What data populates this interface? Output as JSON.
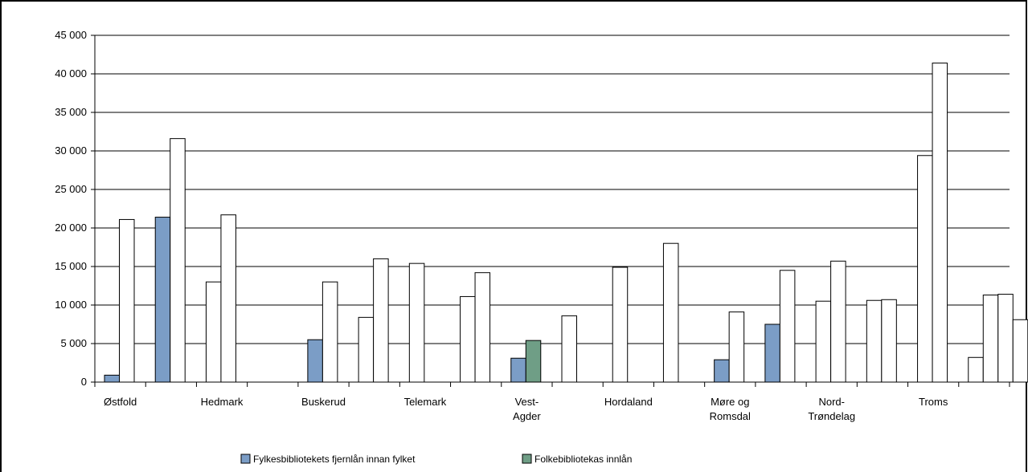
{
  "chart_data": {
    "type": "bar",
    "categories": [
      "Østfold",
      "",
      "Hedmark",
      "",
      "Buskerud",
      "",
      "Telemark",
      "",
      "Vest-Agder",
      "",
      "Hordaland",
      "",
      "Møre og Romsdal",
      "",
      "Nord-Trøndelag",
      "",
      "Troms",
      ""
    ],
    "category_labels": [
      [
        "Østfold"
      ],
      [],
      [
        "Hedmark"
      ],
      [],
      [
        "Buskerud"
      ],
      [],
      [
        "Telemark"
      ],
      [],
      [
        "Vest-",
        "Agder"
      ],
      [],
      [
        "Hordaland"
      ],
      [],
      [
        "Møre og",
        "Romsdal"
      ],
      [],
      [
        "Nord-",
        "Trøndelag"
      ],
      [],
      [
        "Troms"
      ],
      []
    ],
    "series": [
      {
        "name": "Fylkesbibliotekets fjernlån innan fylket",
        "color": "#7b9dc6",
        "values": [
          900,
          21400,
          0,
          0,
          5500,
          0,
          0,
          0,
          3100,
          0,
          0,
          0,
          2900,
          7500,
          0,
          0,
          0,
          0
        ]
      },
      {
        "name": "Folkebibliotekas innlån",
        "color": "#6f9e86",
        "values": [
          0,
          0,
          0,
          0,
          0,
          0,
          0,
          0,
          5400,
          0,
          0,
          0,
          0,
          0,
          0,
          0,
          0,
          0
        ]
      },
      {
        "name": "",
        "color": "#ffffff",
        "values": [
          0,
          0,
          13000,
          0,
          0,
          8400,
          15400,
          11100,
          0,
          0,
          14900,
          0,
          0,
          0,
          10500,
          10600,
          29400,
          3200
        ]
      },
      {
        "name": "",
        "color": "#ffffff",
        "values": [
          21100,
          31600,
          21700,
          0,
          13000,
          16000,
          0,
          14200,
          0,
          8600,
          0,
          18000,
          9100,
          14500,
          15700,
          10700,
          41400,
          0
        ]
      },
      {
        "name": "",
        "color": "#ffffff",
        "values": [
          0,
          0,
          0,
          0,
          0,
          0,
          0,
          0,
          0,
          0,
          0,
          0,
          0,
          0,
          0,
          0,
          0,
          11300
        ]
      },
      {
        "name": "",
        "color": "#ffffff",
        "values": [
          0,
          0,
          0,
          0,
          0,
          0,
          0,
          0,
          0,
          0,
          0,
          0,
          0,
          0,
          0,
          0,
          0,
          11400
        ]
      },
      {
        "name": "",
        "color": "#ffffff",
        "values": [
          0,
          0,
          0,
          0,
          0,
          0,
          0,
          0,
          0,
          0,
          0,
          0,
          0,
          0,
          0,
          0,
          0,
          8100
        ]
      }
    ],
    "ylim": [
      0,
      45000
    ],
    "yticks": [
      "0",
      "5 000",
      "10 000",
      "15 000",
      "20 000",
      "25 000",
      "30 000",
      "35 000",
      "40 000",
      "45 000"
    ],
    "grid": true,
    "legend_position": "bottom",
    "legend": [
      {
        "name": "Fylkesbibliotekets fjernlån innan fylket",
        "color": "#7b9dc6"
      },
      {
        "name": "Folkebibliotekas innlån",
        "color": "#6f9e86"
      }
    ]
  }
}
